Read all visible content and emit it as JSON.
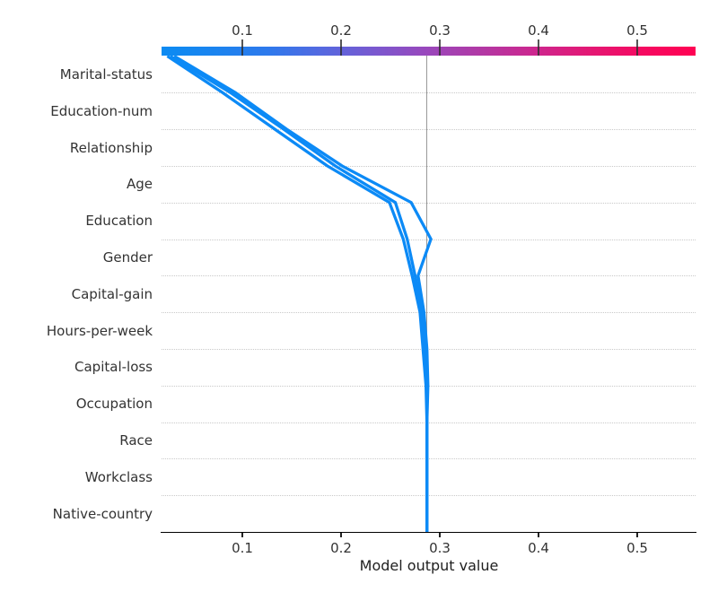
{
  "chart_data": {
    "type": "line",
    "subtype": "shap-decision-plot",
    "title": "",
    "xlabel": "Model output value",
    "ylabel": "",
    "grid": "horizontal-dotted",
    "legend": "none",
    "features": [
      "Marital-status",
      "Education-num",
      "Relationship",
      "Age",
      "Education",
      "Gender",
      "Capital-gain",
      "Hours-per-week",
      "Capital-loss",
      "Occupation",
      "Race",
      "Workclass",
      "Native-country"
    ],
    "x_ticks": [
      0.1,
      0.2,
      0.3,
      0.4,
      0.5
    ],
    "x_tick_labels": [
      "0.1",
      "0.2",
      "0.3",
      "0.4",
      "0.5"
    ],
    "x_range": [
      0.018,
      0.559
    ],
    "base_value": 0.287,
    "colorbar": {
      "position": "top",
      "tick_labels": [
        "0.1",
        "0.2",
        "0.3",
        "0.4",
        "0.5"
      ]
    },
    "series": [
      {
        "name": "path-1",
        "order": "top_to_bottom",
        "final_value": 0.024,
        "cumulative_values": [
          0.024,
          0.08,
          0.133,
          0.186,
          0.249,
          0.263,
          0.272,
          0.28,
          0.283,
          0.286,
          0.287,
          0.287,
          0.287,
          0.287
        ]
      },
      {
        "name": "path-2",
        "order": "top_to_bottom",
        "final_value": 0.027,
        "cumulative_values": [
          0.027,
          0.088,
          0.142,
          0.194,
          0.255,
          0.267,
          0.275,
          0.282,
          0.285,
          0.287,
          0.287,
          0.287,
          0.287,
          0.287
        ]
      },
      {
        "name": "path-3",
        "order": "top_to_bottom",
        "final_value": 0.031,
        "cumulative_values": [
          0.031,
          0.093,
          0.145,
          0.201,
          0.271,
          0.291,
          0.278,
          0.284,
          0.287,
          0.288,
          0.287,
          0.287,
          0.287,
          0.287
        ]
      }
    ],
    "colors": {
      "line": "#0c8af6",
      "reference_line": "#999999",
      "gridline": "#c9c9c9",
      "axis_text": "#333333",
      "colorbar_gradient": [
        [
          "#0c8bf2",
          0
        ],
        [
          "#1b84ef",
          10
        ],
        [
          "#2e79ec",
          20
        ],
        [
          "#5569e0",
          30
        ],
        [
          "#7a58cf",
          40
        ],
        [
          "#9a47bb",
          50
        ],
        [
          "#b238a4",
          60
        ],
        [
          "#cd268e",
          70
        ],
        [
          "#e31874",
          80
        ],
        [
          "#f50a61",
          90
        ],
        [
          "#ff0253",
          100
        ]
      ]
    }
  }
}
